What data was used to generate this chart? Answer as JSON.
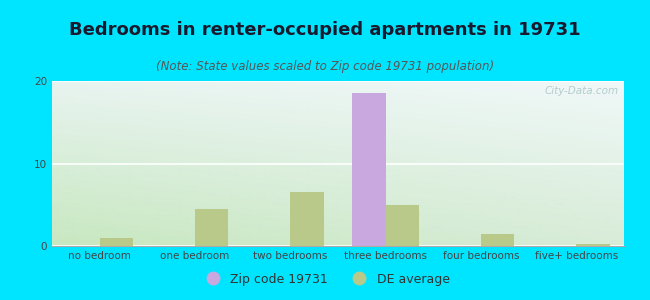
{
  "title": "Bedrooms in renter-occupied apartments in 19731",
  "subtitle": "(Note: State values scaled to Zip code 19731 population)",
  "categories": [
    "no bedroom",
    "one bedroom",
    "two bedrooms",
    "three bedrooms",
    "four bedrooms",
    "five+ bedrooms"
  ],
  "zip_values": [
    0,
    0,
    0,
    18.5,
    0,
    0
  ],
  "de_values": [
    1.0,
    4.5,
    6.5,
    5.0,
    1.5,
    0.3
  ],
  "zip_color": "#c9a8e0",
  "de_color": "#b8c98a",
  "background_outer": "#00e5ff",
  "ylim": [
    0,
    20
  ],
  "yticks": [
    0,
    10,
    20
  ],
  "bar_width": 0.35,
  "legend_zip_label": "Zip code 19731",
  "legend_de_label": "DE average",
  "title_fontsize": 13,
  "subtitle_fontsize": 8.5,
  "tick_fontsize": 7.5,
  "legend_fontsize": 9
}
